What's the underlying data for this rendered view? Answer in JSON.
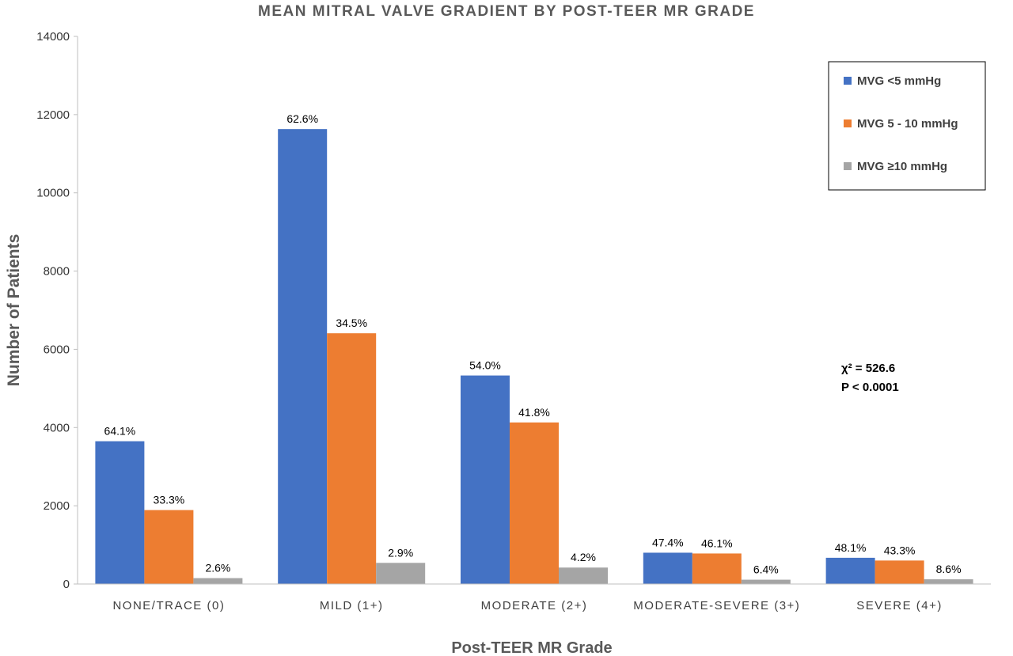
{
  "chart_data": {
    "type": "bar",
    "title": "MEAN MITRAL VALVE GRADIENT BY POST-TEER MR GRADE",
    "xlabel": "Post-TEER MR Grade",
    "ylabel": "Number of Patients",
    "ylim": [
      0,
      14000
    ],
    "yticks": [
      "0",
      "2000",
      "4000",
      "6000",
      "8000",
      "10000",
      "12000",
      "14000"
    ],
    "grid": false,
    "legend_position": "top-right",
    "categories": [
      "NONE/TRACE (0)",
      "MILD (1+)",
      "MODERATE (2+)",
      "MODERATE-SEVERE (3+)",
      "SEVERE (4+)"
    ],
    "series": [
      {
        "name": "MVG <5 mmHg",
        "color": "#4472c4",
        "values": [
          3650,
          11630,
          5330,
          800,
          670
        ],
        "labels": [
          "64.1%",
          "62.6%",
          "54.0%",
          "47.4%",
          "48.1%"
        ]
      },
      {
        "name": "MVG 5 - 10 mmHg",
        "color": "#ed7d31",
        "values": [
          1890,
          6410,
          4130,
          780,
          600
        ],
        "labels": [
          "33.3%",
          "34.5%",
          "41.8%",
          "46.1%",
          "43.3%"
        ]
      },
      {
        "name": "MVG ≥10 mmHg",
        "color": "#a5a5a5",
        "values": [
          150,
          540,
          420,
          110,
          120
        ],
        "labels": [
          "2.6%",
          "2.9%",
          "4.2%",
          "6.4%",
          "8.6%"
        ]
      }
    ],
    "annotations": [
      "χ² = 526.6",
      "P < 0.0001"
    ]
  }
}
